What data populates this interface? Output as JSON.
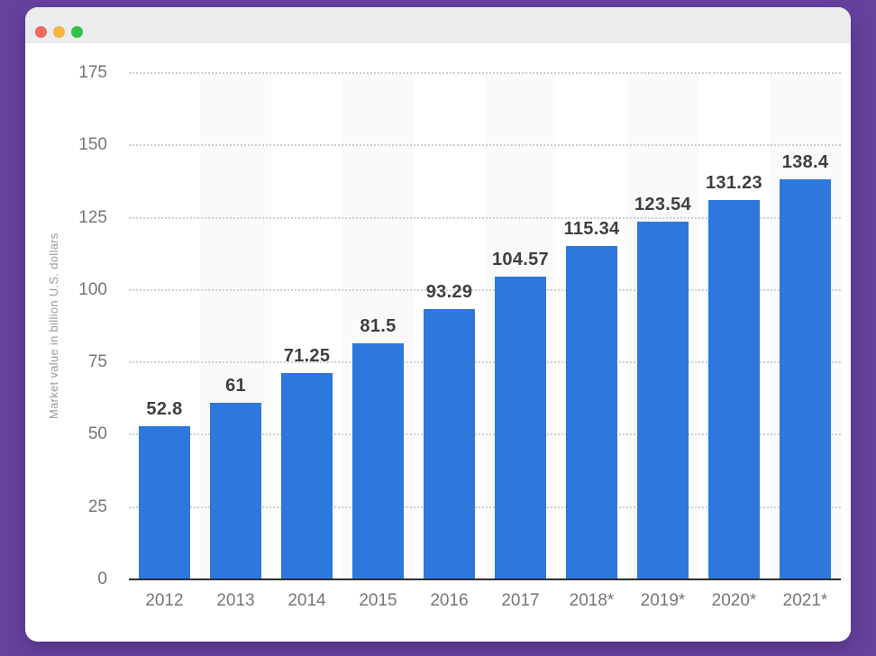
{
  "window": {
    "background_color": "#66429f",
    "titlebar_color": "#ecebee",
    "controls": [
      {
        "name": "close",
        "color": "#ee6a5e"
      },
      {
        "name": "minimize",
        "color": "#f3b440"
      },
      {
        "name": "maximize",
        "color": "#2fc148"
      }
    ]
  },
  "chart_data": {
    "type": "bar",
    "title": "",
    "xlabel": "",
    "ylabel": "Market value in billion U.S. dollars",
    "categories": [
      "2012",
      "2013",
      "2014",
      "2015",
      "2016",
      "2017",
      "2018*",
      "2019*",
      "2020*",
      "2021*"
    ],
    "values": [
      52.8,
      61,
      71.25,
      81.5,
      93.29,
      104.57,
      115.34,
      123.54,
      131.23,
      138.4
    ],
    "value_labels": [
      "52.8",
      "61",
      "71.25",
      "81.5",
      "93.29",
      "104.57",
      "115.34",
      "123.54",
      "131.23",
      "138.4"
    ],
    "ylim": [
      0,
      175
    ],
    "yticks": [
      0,
      25,
      50,
      75,
      100,
      125,
      150,
      175
    ],
    "grid": "horizontal-dotted",
    "legend": "none",
    "colors": {
      "bar": "#2d77dd",
      "grid": "#cfcfcf",
      "band": "#fafafa",
      "axis": "#2f2f2f",
      "tick_text": "#767676",
      "value_text": "#3f3f3f",
      "ylabel_text": "#9a9a9a"
    }
  }
}
